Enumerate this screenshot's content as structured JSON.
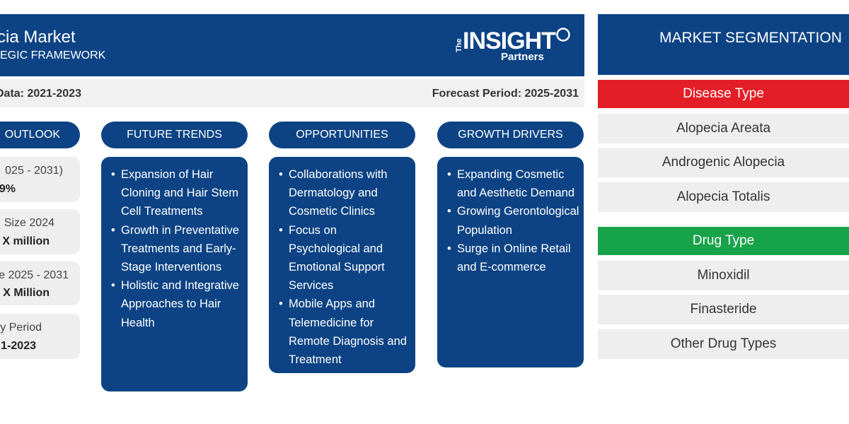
{
  "header": {
    "title": "cia Market",
    "subtitle": "EGIC FRAMEWORK",
    "logo": {
      "brand_prefix": "The",
      "brand": "INSIGHT",
      "sub": "Partners"
    }
  },
  "periods": {
    "historic": "Data: 2021-2023",
    "forecast": "Forecast Period: 2025-2031"
  },
  "outlook": {
    "label": "OUTLOOK",
    "cards": [
      {
        "label": "025 - 2031)",
        "value": "9%"
      },
      {
        "label": "Size 2024",
        "value": "X million"
      },
      {
        "label": "e 2025 - 2031",
        "value": "X Million"
      },
      {
        "label": "y Period",
        "value": "1-2023"
      }
    ]
  },
  "columns": [
    {
      "label": "FUTURE TRENDS",
      "items": [
        "Expansion of Hair Cloning and Hair Stem Cell Treatments",
        "Growth in Preventative Treatments and Early-Stage Interventions",
        "Holistic and Integrative Approaches to Hair Health"
      ]
    },
    {
      "label": "OPPORTUNITIES",
      "items": [
        "Collaborations with Dermatology and Cosmetic Clinics",
        "Focus on Psychological and Emotional Support Services",
        "Mobile Apps and Telemedicine for Remote Diagnosis and Treatment"
      ]
    },
    {
      "label": "GROWTH DRIVERS",
      "items": [
        "Expanding Cosmetic and Aesthetic Demand",
        "Growing Gerontological Population",
        "Surge in Online Retail and E-commerce"
      ]
    }
  ],
  "segmentation": {
    "title": "MARKET SEGMENTATION",
    "disease_type": {
      "label": "Disease Type",
      "color": "#e31e26",
      "items": [
        "Alopecia Areata",
        "Androgenic Alopecia",
        "Alopecia Totalis"
      ]
    },
    "drug_type": {
      "label": "Drug Type",
      "color": "#17a34a",
      "items": [
        "Minoxidil",
        "Finasteride",
        "Other Drug Types"
      ]
    }
  },
  "colors": {
    "navy": "#0d4384",
    "grey": "#eeeeee"
  }
}
